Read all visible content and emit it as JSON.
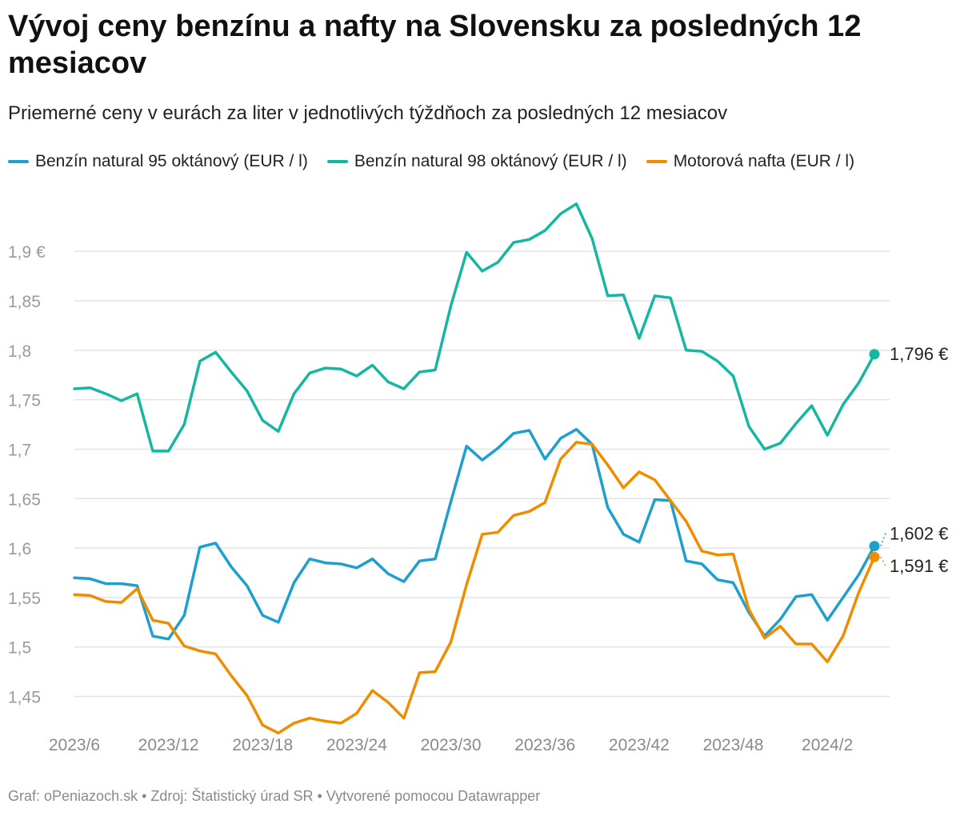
{
  "header": {
    "title": "Vývoj ceny benzínu a nafty na Slovensku za posledných 12 mesiacov",
    "subtitle": "Priemerné ceny v eurách za liter v jednotlivých týždňoch za posledných 12 mesiacov"
  },
  "footer": {
    "credit": "Graf: oPeniazoch.sk • Zdroj: Štatistický úrad SR • Vytvorené pomocou Datawrapper"
  },
  "chart_data": {
    "type": "line",
    "title": "Vývoj ceny benzínu a nafty na Slovensku za posledných 12 mesiacov",
    "subtitle": "Priemerné ceny v eurách za liter v jednotlivých týždňoch za posledných 12 mesiacov",
    "xlabel": "",
    "ylabel": "",
    "ylim": [
      1.41,
      1.96
    ],
    "grid": true,
    "legend_position": "top-left",
    "y_ticks": [
      1.45,
      1.5,
      1.55,
      1.6,
      1.65,
      1.7,
      1.75,
      1.8,
      1.85,
      1.9
    ],
    "y_tick_labels": [
      "1,45",
      "1,5",
      "1,55",
      "1,6",
      "1,65",
      "1,7",
      "1,75",
      "1,8",
      "1,85",
      "1,9 €"
    ],
    "x_ticks": [
      {
        "index": 0,
        "label": "2023/6"
      },
      {
        "index": 6,
        "label": "2023/12"
      },
      {
        "index": 12,
        "label": "2023/18"
      },
      {
        "index": 18,
        "label": "2023/24"
      },
      {
        "index": 24,
        "label": "2023/30"
      },
      {
        "index": 30,
        "label": "2023/36"
      },
      {
        "index": 36,
        "label": "2023/42"
      },
      {
        "index": 42,
        "label": "2023/48"
      },
      {
        "index": 48,
        "label": "2024/2"
      }
    ],
    "point_count": 52,
    "series": [
      {
        "name": "Benzín natural 95 oktánový (EUR / l)",
        "color": "#1f9ed0",
        "end_label": "1,602 €",
        "values": [
          1.57,
          1.569,
          1.564,
          1.564,
          1.562,
          1.511,
          1.508,
          1.532,
          1.601,
          1.605,
          1.581,
          1.562,
          1.532,
          1.525,
          1.565,
          1.589,
          1.585,
          1.584,
          1.58,
          1.589,
          1.574,
          1.566,
          1.587,
          1.589,
          1.647,
          1.703,
          1.689,
          1.701,
          1.716,
          1.719,
          1.69,
          1.711,
          1.72,
          1.705,
          1.641,
          1.614,
          1.606,
          1.649,
          1.648,
          1.587,
          1.584,
          1.568,
          1.565,
          1.535,
          1.511,
          1.528,
          1.551,
          1.553,
          1.527,
          1.55,
          1.573,
          1.602
        ]
      },
      {
        "name": "Benzín natural 98 oktánový (EUR / l)",
        "color": "#16b7a0",
        "end_label": "1,796 €",
        "values": [
          1.761,
          1.762,
          1.756,
          1.749,
          1.756,
          1.698,
          1.698,
          1.725,
          1.789,
          1.798,
          1.778,
          1.759,
          1.729,
          1.718,
          1.756,
          1.777,
          1.782,
          1.781,
          1.774,
          1.785,
          1.768,
          1.761,
          1.778,
          1.78,
          1.845,
          1.899,
          1.88,
          1.889,
          1.909,
          1.912,
          1.921,
          1.938,
          1.948,
          1.913,
          1.855,
          1.856,
          1.812,
          1.855,
          1.853,
          1.8,
          1.799,
          1.789,
          1.774,
          1.723,
          1.7,
          1.706,
          1.726,
          1.744,
          1.714,
          1.745,
          1.767,
          1.796
        ]
      },
      {
        "name": "Motorová nafta (EUR / l)",
        "color": "#f08c00",
        "end_label": "1,591 €",
        "values": [
          1.553,
          1.552,
          1.546,
          1.545,
          1.559,
          1.527,
          1.524,
          1.501,
          1.496,
          1.493,
          1.471,
          1.451,
          1.421,
          1.413,
          1.423,
          1.428,
          1.425,
          1.423,
          1.433,
          1.456,
          1.444,
          1.428,
          1.474,
          1.475,
          1.505,
          1.563,
          1.614,
          1.616,
          1.633,
          1.637,
          1.646,
          1.69,
          1.707,
          1.705,
          1.684,
          1.661,
          1.677,
          1.669,
          1.648,
          1.627,
          1.597,
          1.593,
          1.594,
          1.538,
          1.509,
          1.521,
          1.503,
          1.503,
          1.485,
          1.511,
          1.555,
          1.591
        ]
      }
    ]
  }
}
